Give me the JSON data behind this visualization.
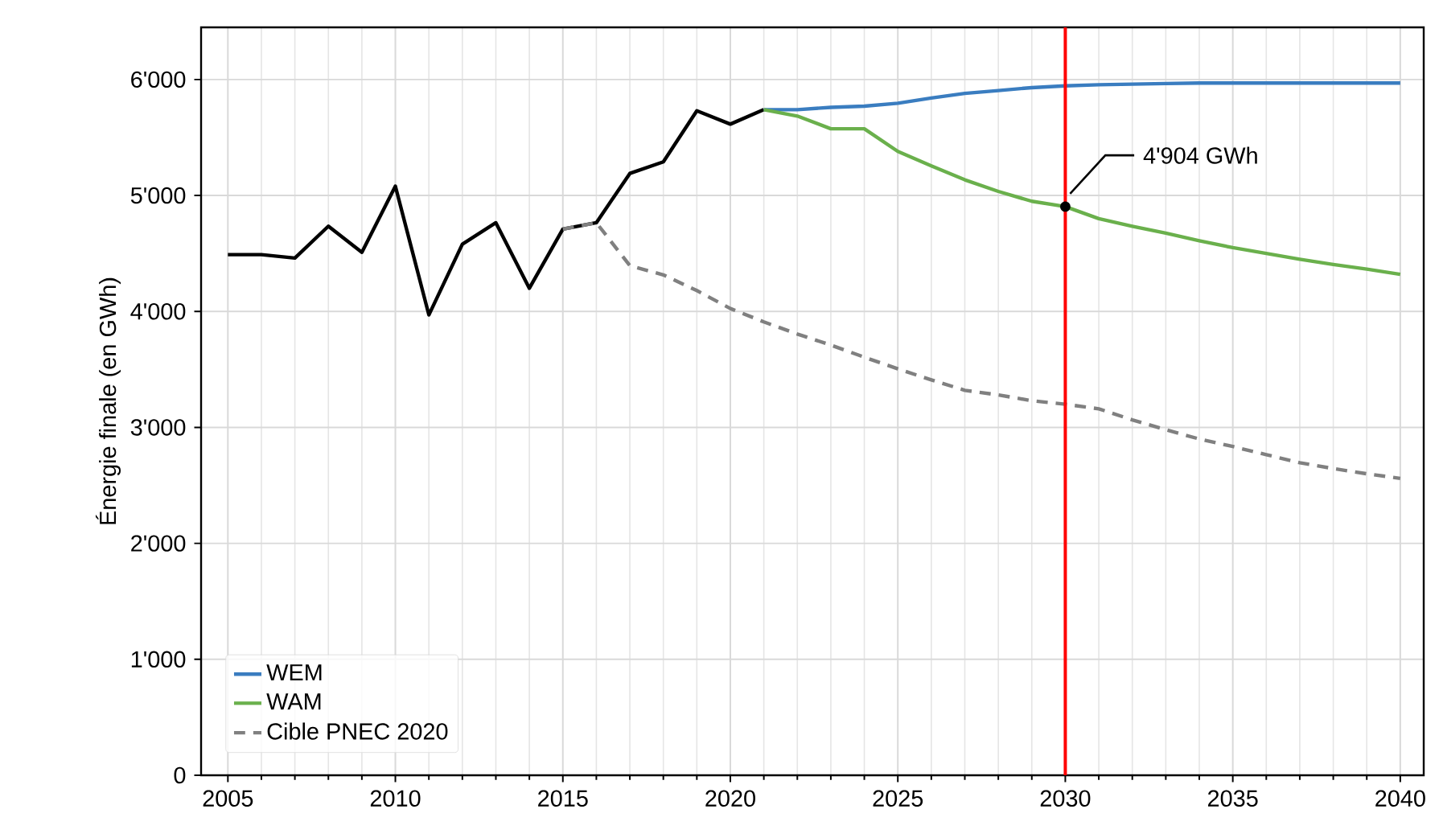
{
  "chart_data": {
    "type": "line",
    "ylabel": "Énergie finale (en GWh)",
    "xlim": [
      2004.2,
      2040.7
    ],
    "ylim": [
      0,
      6450
    ],
    "xticks": [
      2005,
      2010,
      2015,
      2020,
      2025,
      2030,
      2035,
      2040
    ],
    "yticks": [
      0,
      {
        "value": 1000,
        "label": "1'000"
      },
      {
        "value": 2000,
        "label": "2'000"
      },
      {
        "value": 3000,
        "label": "3'000"
      },
      {
        "value": 4000,
        "label": "4'000"
      },
      {
        "value": 5000,
        "label": "5'000"
      },
      {
        "value": 6000,
        "label": "6'000"
      }
    ],
    "grid": true,
    "legend": "bottom left",
    "series": [
      {
        "color": "#000000",
        "x": [
          2005,
          2006,
          2007,
          2008,
          2009,
          2010,
          2011,
          2012,
          2013,
          2014,
          2015,
          2016,
          2017,
          2018,
          2019,
          2020,
          2021
        ],
        "values": [
          4490,
          4490,
          4460,
          4735,
          4510,
          5080,
          3970,
          4580,
          4765,
          4200,
          4710,
          4765,
          5190,
          5290,
          5730,
          5615,
          5740
        ]
      },
      {
        "name": "WEM",
        "color": "#3a7dc0",
        "x": [
          2021,
          2022,
          2023,
          2024,
          2025,
          2026,
          2027,
          2028,
          2029,
          2030,
          2031,
          2032,
          2033,
          2034,
          2035,
          2036,
          2037,
          2038,
          2039,
          2040
        ],
        "values": [
          5740,
          5740,
          5760,
          5770,
          5795,
          5840,
          5880,
          5905,
          5930,
          5945,
          5955,
          5960,
          5965,
          5970,
          5970,
          5970,
          5970,
          5970,
          5970,
          5970
        ]
      },
      {
        "name": "WAM",
        "color": "#6ab04c",
        "x": [
          2021,
          2022,
          2023,
          2024,
          2025,
          2026,
          2027,
          2028,
          2029,
          2030,
          2031,
          2032,
          2033,
          2034,
          2035,
          2036,
          2037,
          2038,
          2039,
          2040
        ],
        "values": [
          5740,
          5685,
          5575,
          5575,
          5380,
          5255,
          5135,
          5035,
          4950,
          4904,
          4800,
          4735,
          4675,
          4610,
          4550,
          4500,
          4450,
          4405,
          4365,
          4320
        ]
      },
      {
        "name": "Cible PNEC 2020",
        "color": "#808080",
        "line_style": "dashed",
        "x": [
          2015,
          2016,
          2017,
          2018,
          2019,
          2020,
          2021,
          2022,
          2023,
          2024,
          2025,
          2026,
          2027,
          2028,
          2029,
          2030,
          2031,
          2032,
          2033,
          2034,
          2035,
          2036,
          2037,
          2038,
          2039,
          2040
        ],
        "values": [
          4710,
          4765,
          4395,
          4315,
          4180,
          4025,
          3910,
          3805,
          3710,
          3605,
          3505,
          3410,
          3320,
          3280,
          3230,
          3200,
          3160,
          3065,
          2980,
          2900,
          2835,
          2765,
          2695,
          2645,
          2600,
          2560
        ]
      }
    ],
    "ref_lines": [
      {
        "axis": "x",
        "value": 2030,
        "color": "#ff0000"
      }
    ],
    "annotations": [
      {
        "text": "4'904 GWh",
        "x": 2030,
        "y": 4904
      }
    ]
  }
}
